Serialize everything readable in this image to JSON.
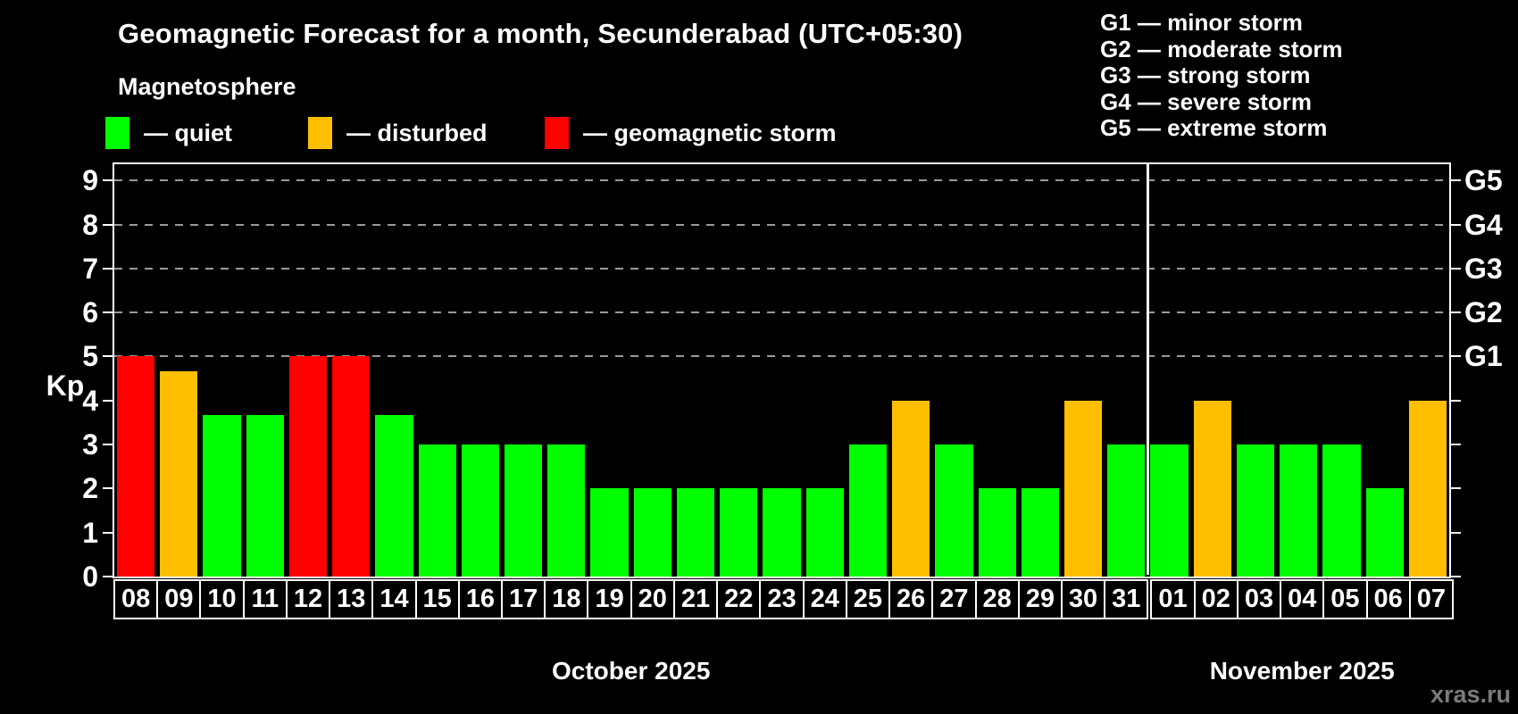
{
  "title": "Geomagnetic Forecast for a month, Secunderabad (UTC+05:30)",
  "subtitle": "Magnetosphere",
  "status_legend": [
    {
      "name": "quiet",
      "label": "— quiet",
      "color": "#00ff00"
    },
    {
      "name": "disturbed",
      "label": "— disturbed",
      "color": "#ffbf00"
    },
    {
      "name": "storm",
      "label": "— geomagnetic storm",
      "color": "#ff0000"
    }
  ],
  "g_scale_legend": [
    "G1 — minor storm",
    "G2 — moderate storm",
    "G3 — strong storm",
    "G4 — severe storm",
    "G5 — extreme storm"
  ],
  "watermark": "xras.ru",
  "chart_data": {
    "type": "bar",
    "title": "Geomagnetic Forecast for a month, Secunderabad (UTC+05:30)",
    "ylabel": "Kp",
    "ylim": [
      0,
      9.4
    ],
    "y_ticks": [
      0,
      1,
      2,
      3,
      4,
      5,
      6,
      7,
      8,
      9
    ],
    "gridlines_kp": [
      5,
      6,
      7,
      8,
      9
    ],
    "grid_style": "dashed gray horizontal lines at Kp 5-9",
    "right_axis_labels": [
      {
        "label": "G1",
        "kp": 5
      },
      {
        "label": "G2",
        "kp": 6
      },
      {
        "label": "G3",
        "kp": 7
      },
      {
        "label": "G4",
        "kp": 8
      },
      {
        "label": "G5",
        "kp": 9
      }
    ],
    "legend_position": "top-left",
    "months": [
      {
        "label": "October 2025",
        "days": [
          {
            "day": "08",
            "kp": 5,
            "status": "storm"
          },
          {
            "day": "09",
            "kp": 4.67,
            "status": "disturbed"
          },
          {
            "day": "10",
            "kp": 3.67,
            "status": "quiet"
          },
          {
            "day": "11",
            "kp": 3.67,
            "status": "quiet"
          },
          {
            "day": "12",
            "kp": 5,
            "status": "storm"
          },
          {
            "day": "13",
            "kp": 5,
            "status": "storm"
          },
          {
            "day": "14",
            "kp": 3.67,
            "status": "quiet"
          },
          {
            "day": "15",
            "kp": 3,
            "status": "quiet"
          },
          {
            "day": "16",
            "kp": 3,
            "status": "quiet"
          },
          {
            "day": "17",
            "kp": 3,
            "status": "quiet"
          },
          {
            "day": "18",
            "kp": 3,
            "status": "quiet"
          },
          {
            "day": "19",
            "kp": 2,
            "status": "quiet"
          },
          {
            "day": "20",
            "kp": 2,
            "status": "quiet"
          },
          {
            "day": "21",
            "kp": 2,
            "status": "quiet"
          },
          {
            "day": "22",
            "kp": 2,
            "status": "quiet"
          },
          {
            "day": "23",
            "kp": 2,
            "status": "quiet"
          },
          {
            "day": "24",
            "kp": 2,
            "status": "quiet"
          },
          {
            "day": "25",
            "kp": 3,
            "status": "quiet"
          },
          {
            "day": "26",
            "kp": 4,
            "status": "disturbed"
          },
          {
            "day": "27",
            "kp": 3,
            "status": "quiet"
          },
          {
            "day": "28",
            "kp": 2,
            "status": "quiet"
          },
          {
            "day": "29",
            "kp": 2,
            "status": "quiet"
          },
          {
            "day": "30",
            "kp": 4,
            "status": "disturbed"
          },
          {
            "day": "31",
            "kp": 3,
            "status": "quiet"
          }
        ]
      },
      {
        "label": "November 2025",
        "days": [
          {
            "day": "01",
            "kp": 3,
            "status": "quiet"
          },
          {
            "day": "02",
            "kp": 4,
            "status": "disturbed"
          },
          {
            "day": "03",
            "kp": 3,
            "status": "quiet"
          },
          {
            "day": "04",
            "kp": 3,
            "status": "quiet"
          },
          {
            "day": "05",
            "kp": 3,
            "status": "quiet"
          },
          {
            "day": "06",
            "kp": 2,
            "status": "quiet"
          },
          {
            "day": "07",
            "kp": 4,
            "status": "disturbed"
          }
        ]
      }
    ]
  }
}
